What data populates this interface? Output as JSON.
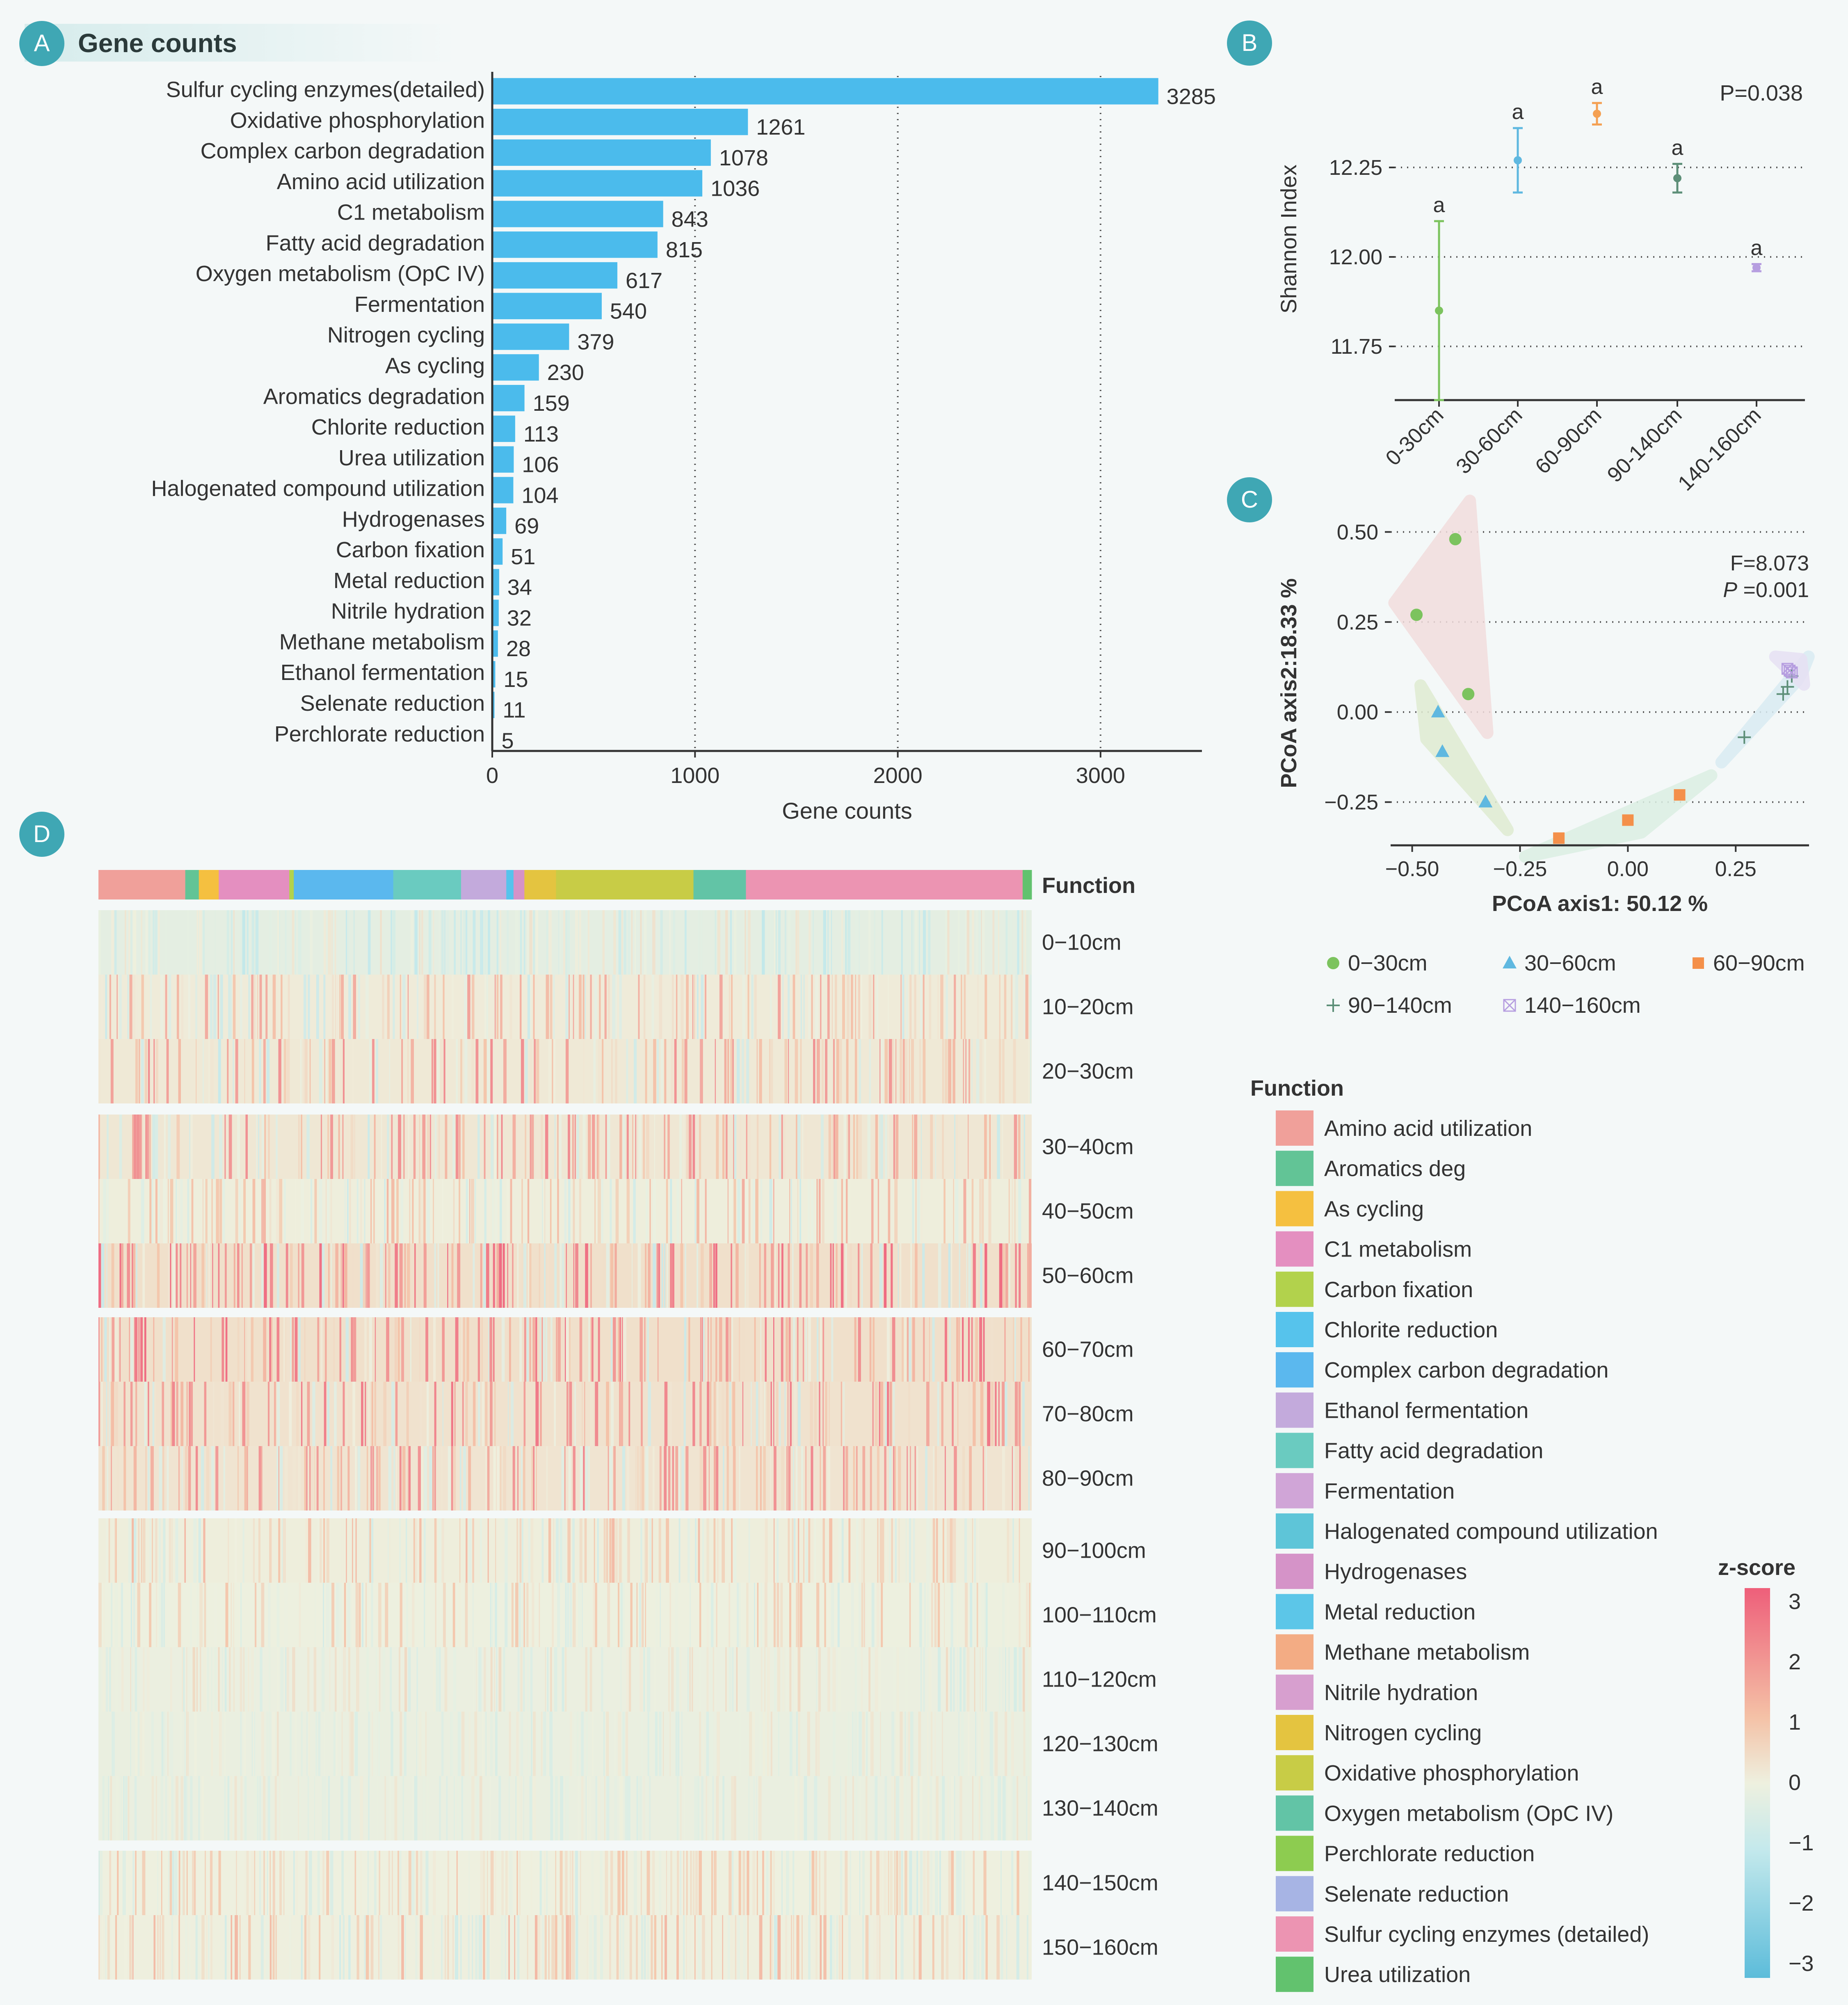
{
  "colors": {
    "background": "#f4f8f8",
    "panel_badge": "#3fa7b4",
    "bar": "#4bbbec",
    "axis": "#333333",
    "grid": "#555555"
  },
  "panels": {
    "a": {
      "badge": "A",
      "title": "Gene counts"
    },
    "b": {
      "badge": "B"
    },
    "c": {
      "badge": "C"
    },
    "d": {
      "badge": "D"
    }
  },
  "chart_data": [
    {
      "id": "A",
      "type": "bar",
      "orientation": "horizontal",
      "title": "Gene counts",
      "xlabel": "Gene counts",
      "xlim": [
        0,
        3500
      ],
      "xticks": [
        0,
        1000,
        2000,
        3000
      ],
      "grid": "vertical dotted at 1000, 2000, 3000",
      "color": "#4bbbec",
      "categories": [
        "Sulfur cycling enzymes(detailed)",
        "Oxidative phosphorylation",
        "Complex carbon degradation",
        "Amino acid utilization",
        "C1 metabolism",
        "Fatty acid degradation",
        "Oxygen metabolism (OpC IV)",
        "Fermentation",
        "Nitrogen cycling",
        "As cycling",
        "Aromatics degradation",
        "Chlorite reduction",
        "Urea utilization",
        "Halogenated compound utilization",
        "Hydrogenases",
        "Carbon fixation",
        "Metal reduction",
        "Nitrile hydration",
        "Methane metabolism",
        "Ethanol fermentation",
        "Selenate reduction",
        "Perchlorate reduction"
      ],
      "values": [
        3285,
        1261,
        1078,
        1036,
        843,
        815,
        617,
        540,
        379,
        230,
        159,
        113,
        106,
        104,
        69,
        51,
        34,
        32,
        28,
        15,
        11,
        5
      ]
    },
    {
      "id": "B",
      "type": "scatter",
      "subtype": "mean with error bars",
      "ylabel": "Shannon Index",
      "ylim": [
        11.6,
        12.5
      ],
      "yticks": [
        11.75,
        12.0,
        12.25
      ],
      "grid": "horizontal dotted",
      "annotation": "P=0.038",
      "categories": [
        "0-30cm",
        "30-60cm",
        "60-90cm",
        "90-140cm",
        "140-160cm"
      ],
      "means": [
        11.85,
        12.27,
        12.4,
        12.22,
        11.97
      ],
      "error": [
        0.25,
        0.09,
        0.03,
        0.04,
        0.01
      ],
      "letters": [
        "a",
        "a",
        "a",
        "a",
        "a"
      ],
      "colors": [
        "#7cc35e",
        "#5fb8e0",
        "#f4a052",
        "#5d8f78",
        "#b69ee0"
      ]
    },
    {
      "id": "C",
      "type": "scatter",
      "subtype": "PCoA ordination",
      "xlabel": "PCoA axis1:  50.12 %",
      "ylabel": "PCoA axis2:18.33 %",
      "xlim": [
        -0.55,
        0.42
      ],
      "ylim": [
        -0.37,
        0.53
      ],
      "xticks": [
        "−0.50",
        "−0.25",
        "0.00",
        "0.25"
      ],
      "yticks": [
        "0.50",
        "0.25",
        "0.00",
        "−0.25"
      ],
      "annotation_f": "F=8.073",
      "annotation_p": "=0.001",
      "grid": "horizontal dotted",
      "series": [
        {
          "name": "0−30cm",
          "marker": "circle",
          "color": "#7cc35e",
          "hull": "#f2dddd",
          "points": [
            [
              -0.4,
              0.48
            ],
            [
              -0.49,
              0.27
            ],
            [
              -0.37,
              0.05
            ]
          ]
        },
        {
          "name": "30−60cm",
          "marker": "triangle",
          "color": "#5fb8e0",
          "hull": "#e0ecd2",
          "points": [
            [
              -0.44,
              0.0
            ],
            [
              -0.43,
              -0.11
            ],
            [
              -0.33,
              -0.25
            ]
          ]
        },
        {
          "name": "60−90cm",
          "marker": "square",
          "color": "#f4904a",
          "hull": "#dcefe4",
          "points": [
            [
              -0.16,
              -0.35
            ],
            [
              0.0,
              -0.3
            ],
            [
              0.12,
              -0.23
            ]
          ]
        },
        {
          "name": "90−140cm",
          "marker": "plus",
          "color": "#5d8f78",
          "hull": "#d9ecf3",
          "points": [
            [
              0.27,
              -0.07
            ],
            [
              0.36,
              0.05
            ],
            [
              0.37,
              0.07
            ],
            [
              0.38,
              0.1
            ]
          ]
        },
        {
          "name": "140−160cm",
          "marker": "boxx",
          "color": "#b69ee0",
          "hull": "#e7e1f4",
          "points": [
            [
              0.37,
              0.12
            ],
            [
              0.38,
              0.11
            ],
            [
              0.375,
              0.115
            ]
          ]
        }
      ],
      "legend": [
        "0−30cm",
        "30−60cm",
        "60−90cm",
        "90−140cm",
        "140−160cm"
      ]
    },
    {
      "id": "D",
      "type": "heatmap",
      "color_scale": "z-score",
      "scale_range": [
        -3,
        3
      ],
      "scale_ticks": [
        "3",
        "2",
        "1",
        "0",
        "−1",
        "−2",
        "−3"
      ],
      "annotation_row_label": "Function",
      "rows": [
        "0−10cm",
        "10−20cm",
        "20−30cm",
        "30−40cm",
        "40−50cm",
        "50−60cm",
        "60−70cm",
        "70−80cm",
        "80−90cm",
        "90−100cm",
        "100−110cm",
        "110−120cm",
        "120−130cm",
        "130−140cm",
        "140−150cm",
        "150−160cm"
      ],
      "row_groups": [
        3,
        3,
        3,
        5,
        2
      ],
      "row_intensity": [
        0.25,
        0.45,
        0.55,
        0.55,
        0.4,
        0.7,
        0.65,
        0.6,
        0.55,
        0.35,
        0.3,
        0.2,
        0.15,
        0.15,
        0.3,
        0.35
      ],
      "row_bias": [
        -0.5,
        0.2,
        0.3,
        0.4,
        0.1,
        0.7,
        0.7,
        0.6,
        0.5,
        0.1,
        -0.05,
        -0.15,
        -0.2,
        -0.2,
        0.0,
        0.05
      ],
      "function_bar": [
        {
          "function": "Amino acid utilization",
          "fraction": 0.096
        },
        {
          "function": "Aromatics deg",
          "fraction": 0.015
        },
        {
          "function": "As cycling",
          "fraction": 0.022
        },
        {
          "function": "C1 metabolism",
          "fraction": 0.078
        },
        {
          "function": "Carbon fixation",
          "fraction": 0.005
        },
        {
          "function": "Complex carbon degradation",
          "fraction": 0.11
        },
        {
          "function": "Fatty acid degradation",
          "fraction": 0.075
        },
        {
          "function": "Ethanol fermentation",
          "fraction": 0.05
        },
        {
          "function": "Chlorite reduction",
          "fraction": 0.008
        },
        {
          "function": "Hydrogenases",
          "fraction": 0.012
        },
        {
          "function": "Nitrogen cycling",
          "fraction": 0.035
        },
        {
          "function": "Oxidative phosphorylation",
          "fraction": 0.152
        },
        {
          "function": "Oxygen metabolism (OpC IV)",
          "fraction": 0.058
        },
        {
          "function": "Sulfur cycling enzymes (detailed)",
          "fraction": 0.306
        },
        {
          "function": "Urea utilization",
          "fraction": 0.01
        }
      ]
    }
  ],
  "function_legend": {
    "title": "Function",
    "items": [
      {
        "label": "Amino acid utilization",
        "color": "#f0a09a"
      },
      {
        "label": "Aromatics deg",
        "color": "#62c496"
      },
      {
        "label": "As cycling",
        "color": "#f5c040"
      },
      {
        "label": "C1 metabolism",
        "color": "#e48fc0"
      },
      {
        "label": "Carbon fixation",
        "color": "#b2d24c"
      },
      {
        "label": "Chlorite reduction",
        "color": "#56c3ec"
      },
      {
        "label": "Complex carbon degradation",
        "color": "#5bb8ee"
      },
      {
        "label": "Ethanol fermentation",
        "color": "#c3aadc"
      },
      {
        "label": "Fatty acid degradation",
        "color": "#6acbc0"
      },
      {
        "label": "Fermentation",
        "color": "#d0a5d7"
      },
      {
        "label": "Halogenated compound utilization",
        "color": "#5ec5d8"
      },
      {
        "label": "Hydrogenases",
        "color": "#d593c8"
      },
      {
        "label": "Metal reduction",
        "color": "#5cc6e8"
      },
      {
        "label": "Methane metabolism",
        "color": "#f3ac84"
      },
      {
        "label": "Nitrile hydration",
        "color": "#d79fcf"
      },
      {
        "label": "Nitrogen cycling",
        "color": "#e4c440"
      },
      {
        "label": "Oxidative phosphorylation",
        "color": "#c8cc46"
      },
      {
        "label": "Oxygen metabolism (OpC IV)",
        "color": "#62c4a6"
      },
      {
        "label": "Perchlorate reduction",
        "color": "#8dcc50"
      },
      {
        "label": "Selenate reduction",
        "color": "#a7b4e4"
      },
      {
        "label": "Sulfur cycling enzymes (detailed)",
        "color": "#ec94b2"
      },
      {
        "label": "Urea utilization",
        "color": "#62c26e"
      }
    ]
  }
}
